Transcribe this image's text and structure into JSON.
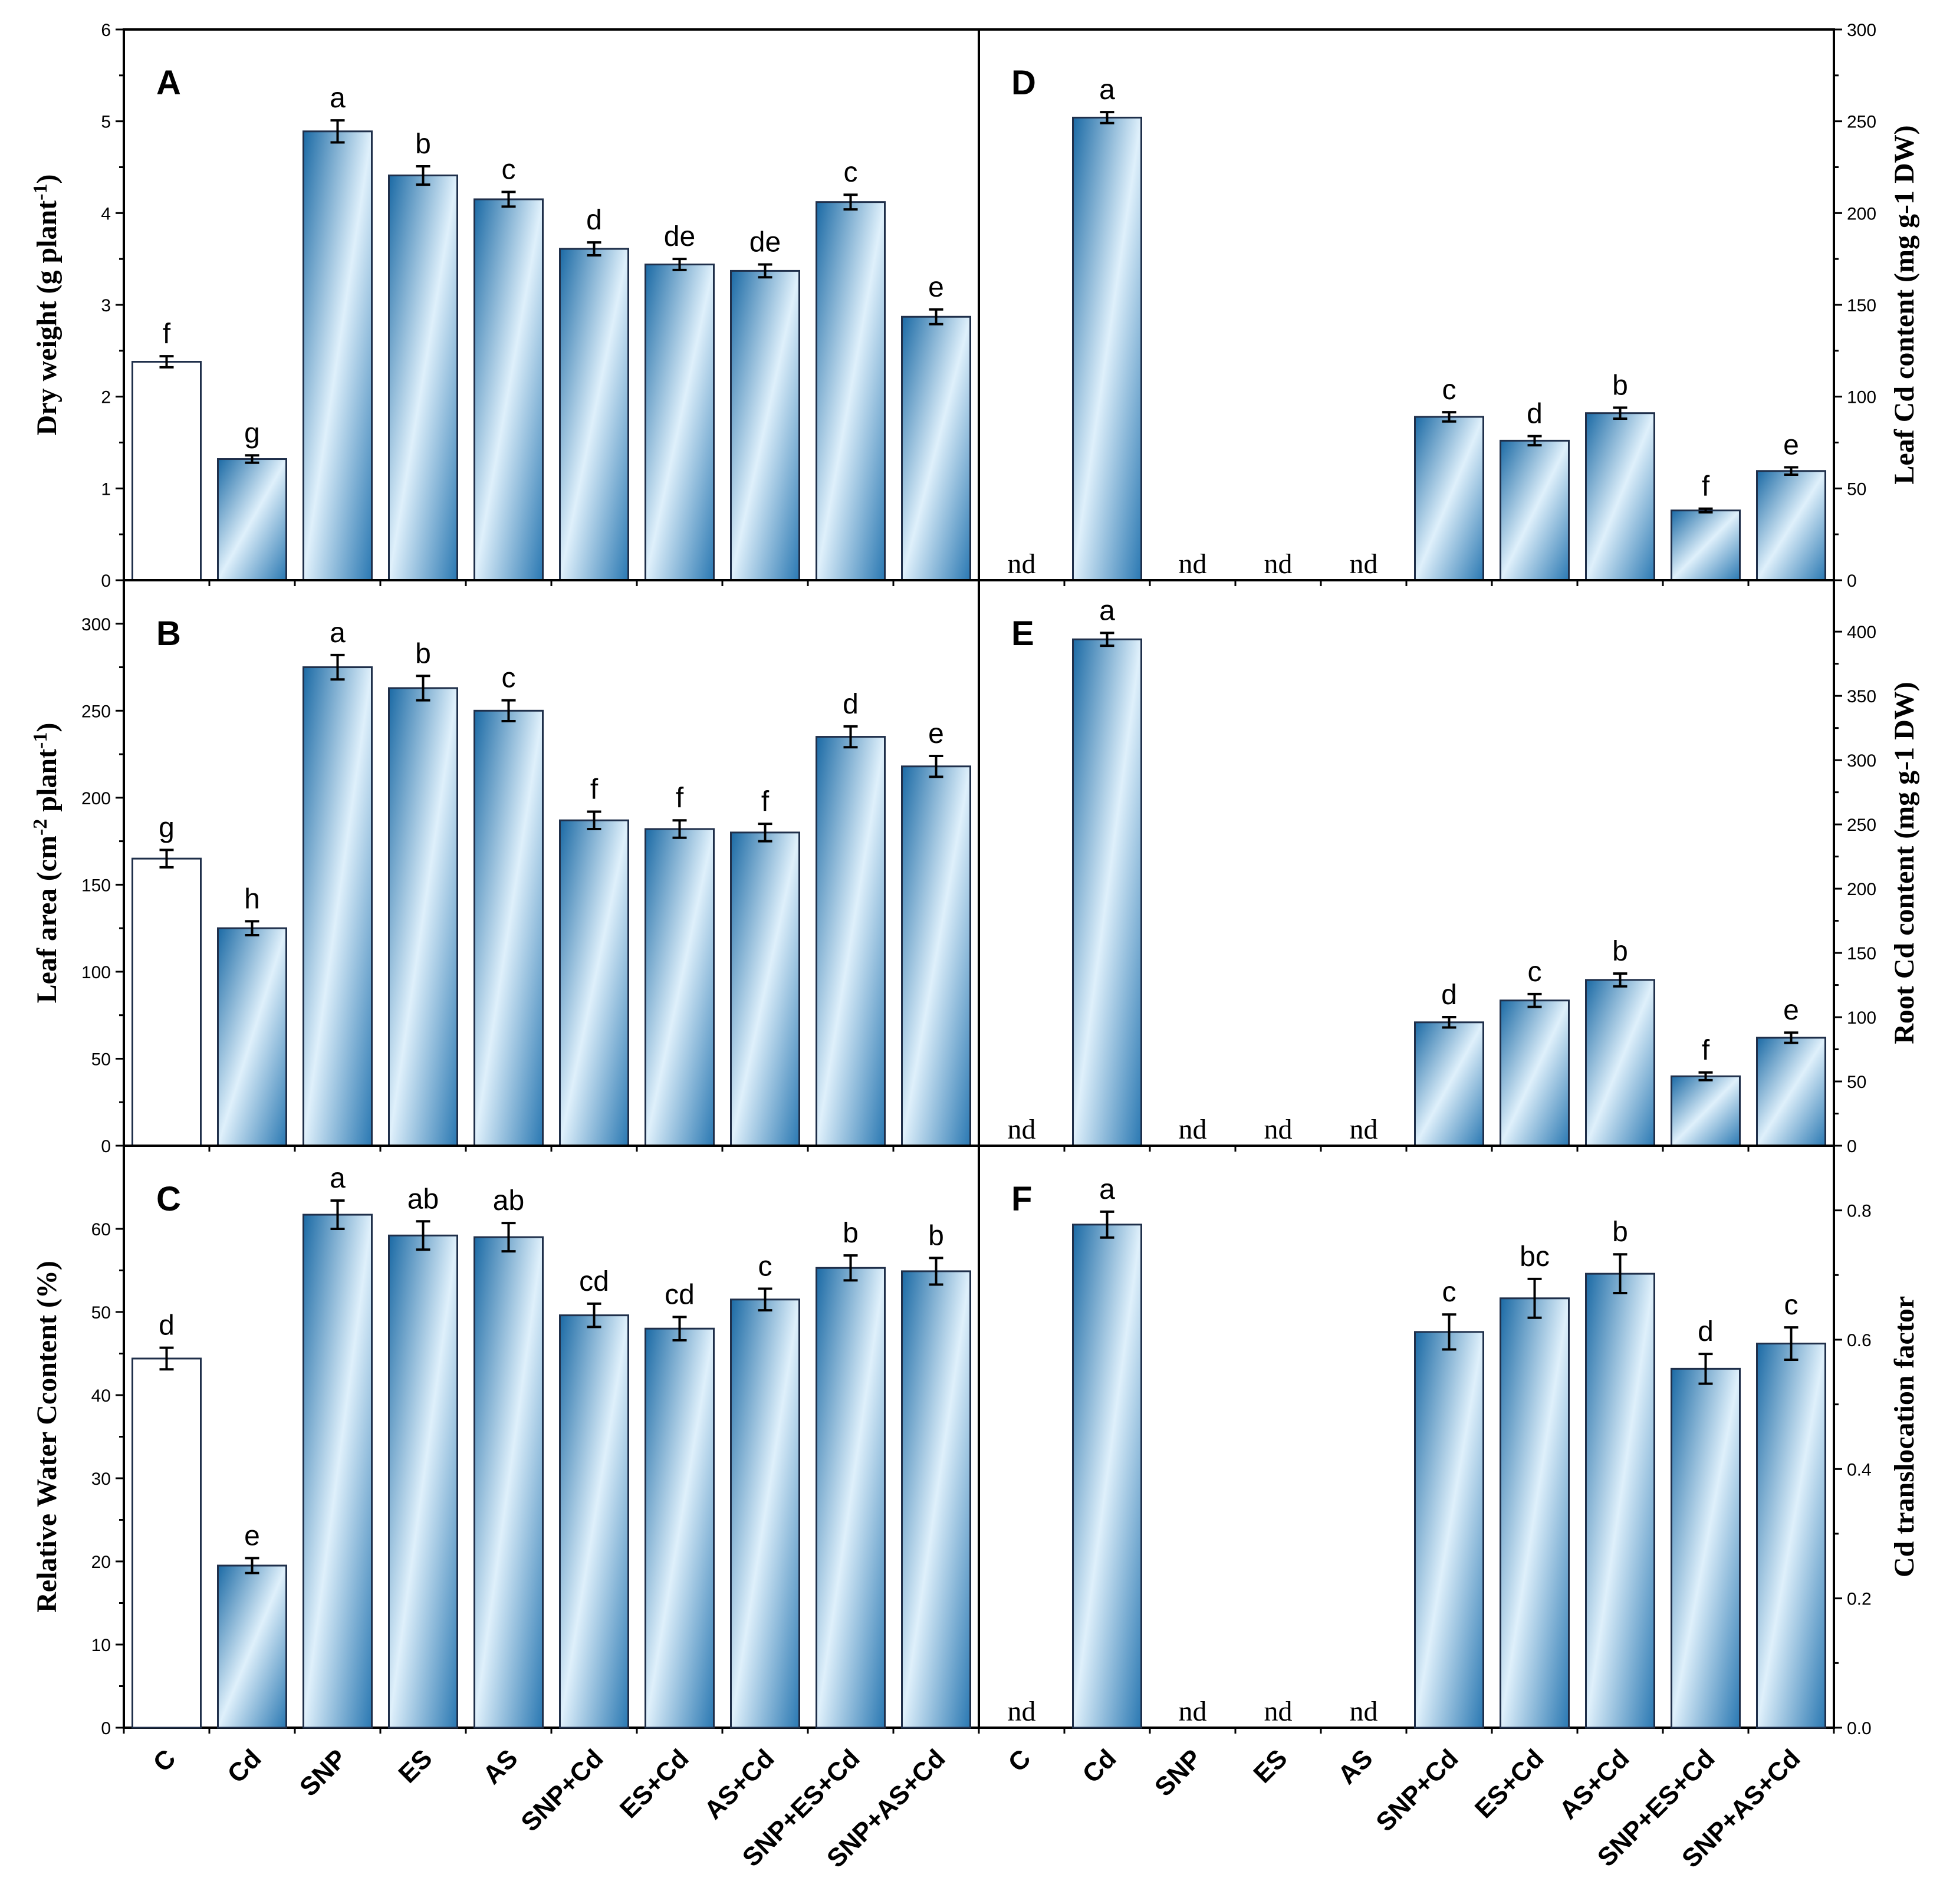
{
  "colors": {
    "bar_dark": "#1b6aa5",
    "bar_light": "#dff0fb",
    "control_fill": "#ffffff",
    "axis": "#000000"
  },
  "categories": [
    "C",
    "Cd",
    "SNP",
    "ES",
    "AS",
    "SNP+Cd",
    "ES+Cd",
    "AS+Cd",
    "SNP+ES+Cd",
    "SNP+AS+Cd"
  ],
  "chart_data": [
    {
      "panel": "A",
      "type": "bar",
      "ylabel_main": "Dry weight (g plant",
      "ylabel_sup": "-1",
      "ylabel_tail": ")",
      "ylim": [
        0,
        6
      ],
      "yticks": [
        0,
        1,
        2,
        3,
        4,
        5,
        6
      ],
      "tick_labels": [
        "0",
        "1",
        "2",
        "3",
        "4",
        "5",
        "6"
      ],
      "values": [
        2.38,
        1.32,
        4.89,
        4.41,
        4.15,
        3.61,
        3.44,
        3.37,
        4.12,
        2.87
      ],
      "errors": [
        0.06,
        0.04,
        0.12,
        0.1,
        0.08,
        0.07,
        0.06,
        0.07,
        0.08,
        0.08
      ],
      "letters": [
        "f",
        "g",
        "a",
        "b",
        "c",
        "d",
        "de",
        "de",
        "c",
        "e"
      ]
    },
    {
      "panel": "B",
      "type": "bar",
      "ylabel_main": "Leaf area (cm",
      "ylabel_sup": "-2",
      "ylabel_mid": " plant",
      "ylabel_sup2": "-1",
      "ylabel_tail": ")",
      "ylim": [
        0,
        325
      ],
      "yticks": [
        0,
        50,
        100,
        150,
        200,
        250,
        300
      ],
      "tick_labels": [
        "0",
        "50",
        "100",
        "150",
        "200",
        "250",
        "300"
      ],
      "values": [
        165,
        125,
        275,
        263,
        250,
        187,
        182,
        180,
        235,
        218
      ],
      "errors": [
        5,
        4,
        7,
        7,
        6,
        5,
        5,
        5,
        6,
        6
      ],
      "letters": [
        "g",
        "h",
        "a",
        "b",
        "c",
        "f",
        "f",
        "f",
        "d",
        "e"
      ]
    },
    {
      "panel": "C",
      "type": "bar",
      "ylabel_main": "Relative Water Ccontent (%)",
      "ylim": [
        0,
        70
      ],
      "yticks": [
        0,
        10,
        20,
        30,
        40,
        50,
        60
      ],
      "tick_labels": [
        "0",
        "10",
        "20",
        "30",
        "40",
        "50",
        "60"
      ],
      "values": [
        44.4,
        19.5,
        61.7,
        59.2,
        59.0,
        49.6,
        48.0,
        51.5,
        55.3,
        54.9
      ],
      "errors": [
        1.3,
        0.9,
        1.7,
        1.7,
        1.7,
        1.4,
        1.4,
        1.3,
        1.5,
        1.6
      ],
      "letters": [
        "d",
        "e",
        "a",
        "ab",
        "ab",
        "cd",
        "cd",
        "c",
        "b",
        "b"
      ]
    },
    {
      "panel": "D",
      "type": "bar",
      "ylabel_main": "Leaf Cd content (mg g-1 DW)",
      "ylim": [
        0,
        300
      ],
      "yticks": [
        0,
        50,
        100,
        150,
        200,
        250,
        300
      ],
      "tick_labels": [
        "0",
        "50",
        "100",
        "150",
        "200",
        "250",
        "300"
      ],
      "values": [
        0,
        252,
        0,
        0,
        0,
        89,
        76,
        91,
        38,
        59.5
      ],
      "errors": [
        0,
        3,
        0,
        0,
        0,
        2.5,
        2.5,
        3,
        1,
        2
      ],
      "letters": [
        "nd",
        "a",
        "nd",
        "nd",
        "nd",
        "c",
        "d",
        "b",
        "f",
        "e"
      ]
    },
    {
      "panel": "E",
      "type": "bar",
      "ylabel_main": "Root Cd content (mg g-1 DW)",
      "ylim": [
        0,
        440
      ],
      "yticks": [
        0,
        50,
        100,
        150,
        200,
        250,
        300,
        350,
        400
      ],
      "tick_labels": [
        "0",
        "50",
        "100",
        "150",
        "200",
        "250",
        "300",
        "350",
        "400"
      ],
      "values": [
        0,
        394,
        0,
        0,
        0,
        96,
        113,
        129,
        54,
        84
      ],
      "errors": [
        0,
        5,
        0,
        0,
        0,
        4,
        5,
        5,
        3,
        4
      ],
      "letters": [
        "nd",
        "a",
        "nd",
        "nd",
        "nd",
        "d",
        "c",
        "b",
        "f",
        "e"
      ]
    },
    {
      "panel": "F",
      "type": "bar",
      "ylabel_main": "Cd translocation factor",
      "ylim": [
        0,
        0.9
      ],
      "yticks": [
        0,
        0.2,
        0.4,
        0.6,
        0.8
      ],
      "tick_labels": [
        "0.0",
        "0.2",
        "0.4",
        "0.6",
        "0.8"
      ],
      "values": [
        0,
        0.778,
        0,
        0,
        0,
        0.612,
        0.664,
        0.702,
        0.555,
        0.594
      ],
      "errors": [
        0,
        0.02,
        0,
        0,
        0,
        0.027,
        0.03,
        0.03,
        0.023,
        0.025
      ],
      "letters": [
        "nd",
        "a",
        "nd",
        "nd",
        "nd",
        "c",
        "bc",
        "b",
        "d",
        "c"
      ]
    }
  ]
}
